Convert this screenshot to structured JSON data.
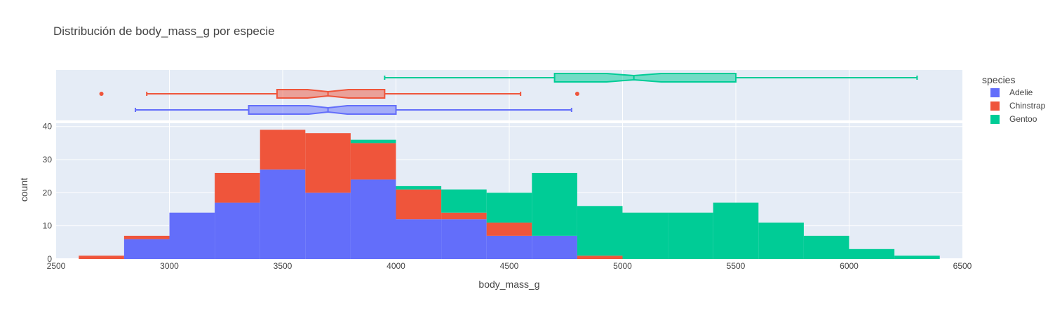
{
  "chart_data": {
    "type": "histogram",
    "title": "Distribución de body_mass_g por especie",
    "xlabel": "body_mass_g",
    "ylabel": "count",
    "xlim": [
      2500,
      6500
    ],
    "ylim": [
      0,
      41
    ],
    "xticks": [
      2500,
      3000,
      3500,
      4000,
      4500,
      5000,
      5500,
      6000,
      6500
    ],
    "yticks": [
      0,
      10,
      20,
      30,
      40
    ],
    "bin_edges": [
      2600,
      2800,
      3000,
      3200,
      3400,
      3600,
      3800,
      4000,
      4200,
      4400,
      4600,
      4800,
      5000,
      5200,
      5400,
      5600,
      5800,
      6000,
      6200,
      6400
    ],
    "barmode": "stack",
    "legend": {
      "title": "species",
      "position": "top-right"
    },
    "series": [
      {
        "name": "Adelie",
        "color": "#636efa",
        "values": [
          0,
          6,
          14,
          17,
          27,
          20,
          24,
          12,
          12,
          7,
          7,
          0,
          0,
          0,
          0,
          0,
          0,
          0,
          0
        ]
      },
      {
        "name": "Chinstrap",
        "color": "#ef553b",
        "values": [
          1,
          1,
          0,
          9,
          12,
          18,
          11,
          9,
          2,
          4,
          0,
          1,
          0,
          0,
          0,
          0,
          0,
          0,
          0
        ]
      },
      {
        "name": "Gentoo",
        "color": "#00cc96",
        "values": [
          0,
          0,
          0,
          0,
          0,
          0,
          1,
          1,
          7,
          9,
          19,
          15,
          14,
          14,
          17,
          11,
          7,
          3,
          1
        ]
      }
    ],
    "marginal_box": [
      {
        "name": "Gentoo",
        "color": "#00cc96",
        "min": 3950,
        "q1": 4700,
        "median": 5050,
        "q3": 5500,
        "max": 6300,
        "notch": [
          4930,
          5170
        ],
        "outliers": []
      },
      {
        "name": "Chinstrap",
        "color": "#ef553b",
        "min": 2900,
        "q1": 3475,
        "median": 3700,
        "q3": 3950,
        "max": 4550,
        "notch": [
          3610,
          3790
        ],
        "outliers": [
          2700,
          4800
        ]
      },
      {
        "name": "Adelie",
        "color": "#636efa",
        "min": 2850,
        "q1": 3350,
        "median": 3700,
        "q3": 4000,
        "max": 4775,
        "notch": [
          3615,
          3785
        ],
        "outliers": []
      }
    ]
  }
}
